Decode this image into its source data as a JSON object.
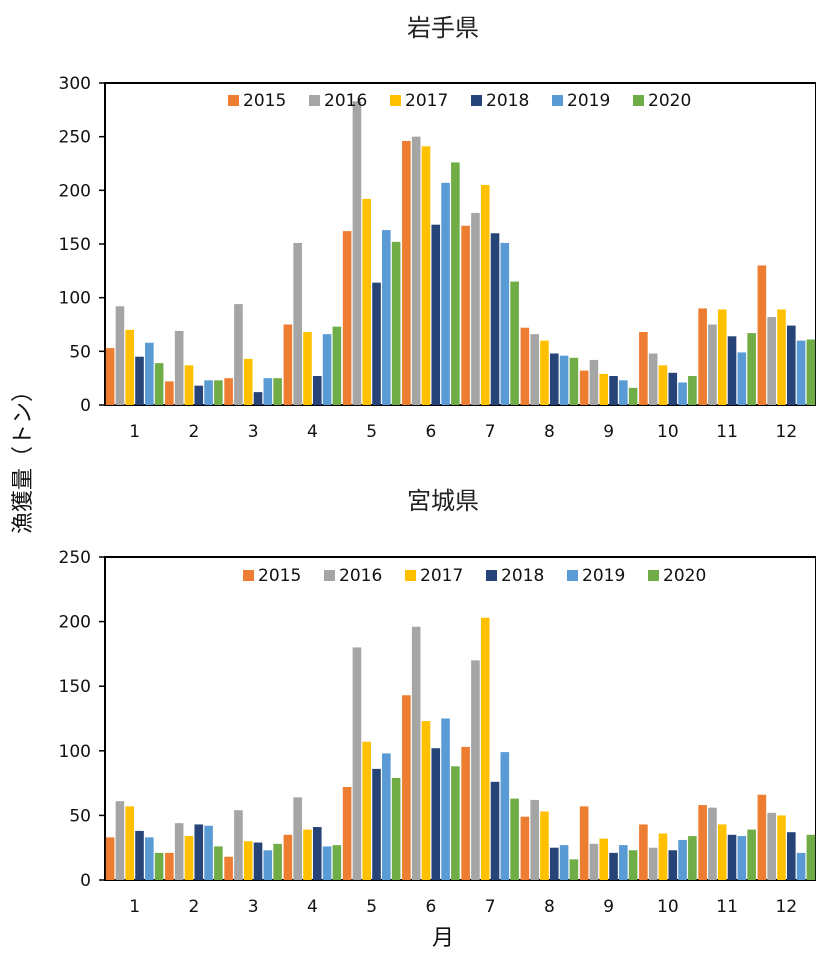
{
  "ylabel": "漁獲量（トン）",
  "xlabel": "月",
  "chart_data": [
    {
      "type": "bar",
      "title": "岩手県",
      "categories": [
        "1",
        "2",
        "3",
        "4",
        "5",
        "6",
        "7",
        "8",
        "9",
        "10",
        "11",
        "12"
      ],
      "ylim": [
        0,
        300
      ],
      "yticks": [
        "0",
        "50",
        "100",
        "150",
        "200",
        "250",
        "300"
      ],
      "legend_position": "top",
      "grid": false,
      "series": [
        {
          "name": "2015",
          "color": "#ED7D31",
          "values": [
            53,
            22,
            25,
            75,
            162,
            246,
            167,
            72,
            32,
            68,
            90,
            130
          ]
        },
        {
          "name": "2016",
          "color": "#A5A5A5",
          "values": [
            92,
            69,
            94,
            151,
            283,
            250,
            179,
            66,
            42,
            48,
            75,
            82
          ]
        },
        {
          "name": "2017",
          "color": "#FFC000",
          "values": [
            70,
            37,
            43,
            68,
            192,
            241,
            205,
            60,
            29,
            37,
            89,
            89
          ]
        },
        {
          "name": "2018",
          "color": "#264478",
          "values": [
            45,
            18,
            12,
            27,
            114,
            168,
            160,
            48,
            27,
            30,
            64,
            74
          ]
        },
        {
          "name": "2019",
          "color": "#5B9BD5",
          "values": [
            58,
            23,
            25,
            66,
            163,
            207,
            151,
            46,
            23,
            21,
            49,
            60
          ]
        },
        {
          "name": "2020",
          "color": "#70AD47",
          "values": [
            39,
            23,
            25,
            73,
            152,
            226,
            115,
            44,
            16,
            27,
            67,
            61
          ]
        }
      ]
    },
    {
      "type": "bar",
      "title": "宮城県",
      "categories": [
        "1",
        "2",
        "3",
        "4",
        "5",
        "6",
        "7",
        "8",
        "9",
        "10",
        "11",
        "12"
      ],
      "ylim": [
        0,
        250
      ],
      "yticks": [
        "0",
        "50",
        "100",
        "150",
        "200",
        "250"
      ],
      "legend_position": "top",
      "grid": false,
      "series": [
        {
          "name": "2015",
          "color": "#ED7D31",
          "values": [
            33,
            21,
            18,
            35,
            72,
            143,
            103,
            49,
            57,
            43,
            58,
            66
          ]
        },
        {
          "name": "2016",
          "color": "#A5A5A5",
          "values": [
            61,
            44,
            54,
            64,
            180,
            196,
            170,
            62,
            28,
            25,
            56,
            52
          ]
        },
        {
          "name": "2017",
          "color": "#FFC000",
          "values": [
            57,
            34,
            30,
            39,
            107,
            123,
            203,
            53,
            32,
            36,
            43,
            50
          ]
        },
        {
          "name": "2018",
          "color": "#264478",
          "values": [
            38,
            43,
            29,
            41,
            86,
            102,
            76,
            25,
            21,
            23,
            35,
            37
          ]
        },
        {
          "name": "2019",
          "color": "#5B9BD5",
          "values": [
            33,
            42,
            23,
            26,
            98,
            125,
            99,
            27,
            27,
            31,
            34,
            21
          ]
        },
        {
          "name": "2020",
          "color": "#70AD47",
          "values": [
            21,
            26,
            28,
            27,
            79,
            88,
            63,
            16,
            23,
            34,
            39,
            35
          ]
        }
      ]
    }
  ]
}
